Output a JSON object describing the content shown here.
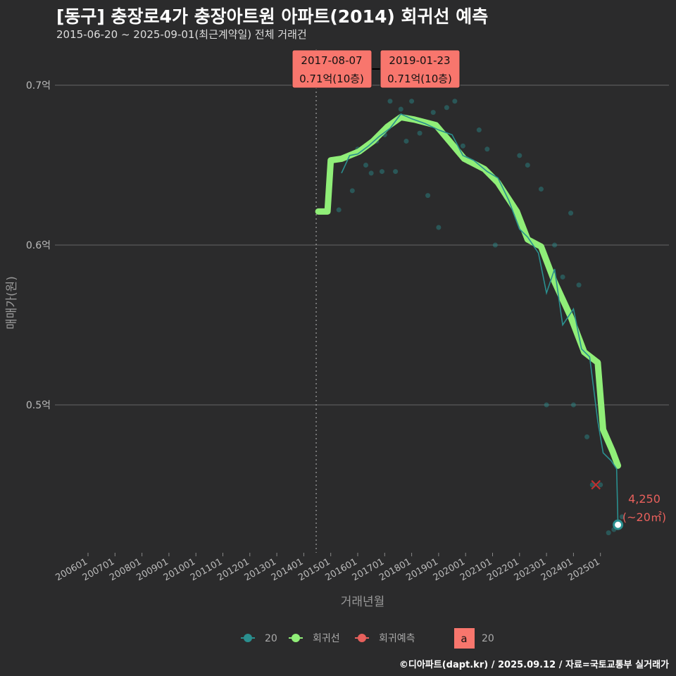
{
  "title": "[동구] 충장로4가 충장아트원 아파트(2014) 회귀선 예측",
  "subtitle": "2015-06-20 ~ 2025-09-01(최근계약일) 전체 거래건",
  "caption": "©디아파트(dapt.kr) / 2025.09.12 / 자료=국토교통부 실거래가",
  "chart_data": {
    "type": "line",
    "xlabel": "거래년월",
    "ylabel": "매매가(원)",
    "xlim": [
      2005.0,
      2026.4
    ],
    "ylim": [
      4050,
      7150
    ],
    "x_ticks": [
      {
        "v": 2006,
        "label": "200601"
      },
      {
        "v": 2007,
        "label": "200701"
      },
      {
        "v": 2008,
        "label": "200801"
      },
      {
        "v": 2009,
        "label": "200901"
      },
      {
        "v": 2010,
        "label": "201001"
      },
      {
        "v": 2011,
        "label": "201101"
      },
      {
        "v": 2012,
        "label": "201201"
      },
      {
        "v": 2013,
        "label": "201301"
      },
      {
        "v": 2014,
        "label": "201401"
      },
      {
        "v": 2015,
        "label": "201501"
      },
      {
        "v": 2016,
        "label": "201601"
      },
      {
        "v": 2017,
        "label": "201701"
      },
      {
        "v": 2018,
        "label": "201801"
      },
      {
        "v": 2019,
        "label": "201901"
      },
      {
        "v": 2020,
        "label": "202001"
      },
      {
        "v": 2021,
        "label": "202101"
      },
      {
        "v": 2022,
        "label": "202201"
      },
      {
        "v": 2023,
        "label": "202301"
      },
      {
        "v": 2024,
        "label": "202401"
      },
      {
        "v": 2025,
        "label": "202501"
      }
    ],
    "y_ticks": [
      {
        "v": 7000,
        "label": "0.7억"
      },
      {
        "v": 6000,
        "label": "0.6억"
      },
      {
        "v": 5000,
        "label": "0.5억"
      }
    ],
    "vline_x": 2014.46,
    "regression": {
      "name": "회귀선",
      "color": "#90ee78",
      "x": [
        2014.54,
        2014.88,
        2015.0,
        2015.4,
        2016.05,
        2016.57,
        2017.1,
        2017.6,
        2018.1,
        2018.9,
        2019.4,
        2019.95,
        2020.7,
        2021.2,
        2021.9,
        2022.3,
        2022.8,
        2023.3,
        2023.9,
        2024.4,
        2024.9,
        2025.1,
        2025.45,
        2025.65
      ],
      "y": [
        6210,
        6210,
        6530,
        6540,
        6585,
        6650,
        6740,
        6800,
        6785,
        6750,
        6650,
        6540,
        6475,
        6390,
        6210,
        6035,
        5990,
        5770,
        5550,
        5330,
        5265,
        4845,
        4710,
        4620
      ]
    },
    "actual": {
      "name": "20",
      "color": "#2a8f8f",
      "x": [
        2015.4,
        2015.7,
        2016.0,
        2016.4,
        2016.8,
        2017.2,
        2017.6,
        2018.0,
        2018.5,
        2019.0,
        2019.5,
        2019.9,
        2020.3,
        2020.8,
        2021.2,
        2021.6,
        2022.0,
        2022.3,
        2022.7,
        2023.0,
        2023.3,
        2023.6,
        2024.0,
        2024.3,
        2024.6,
        2024.9,
        2025.1,
        2025.4,
        2025.6,
        2025.65
      ],
      "y": [
        6450,
        6560,
        6570,
        6620,
        6680,
        6730,
        6820,
        6790,
        6760,
        6720,
        6690,
        6560,
        6530,
        6460,
        6420,
        6280,
        6100,
        6050,
        5950,
        5700,
        5850,
        5500,
        5600,
        5350,
        5300,
        4900,
        4700,
        4650,
        4600,
        4250
      ]
    },
    "scatter": {
      "x": [
        2015.3,
        2015.8,
        2016.0,
        2016.3,
        2016.5,
        2016.7,
        2016.9,
        2017.0,
        2017.2,
        2017.4,
        2017.6,
        2017.8,
        2018.0,
        2018.3,
        2018.6,
        2018.8,
        2019.0,
        2019.3,
        2019.6,
        2019.9,
        2020.1,
        2020.5,
        2020.8,
        2021.1,
        2021.5,
        2022.0,
        2022.3,
        2022.8,
        2023.0,
        2023.3,
        2023.6,
        2023.9,
        2024.0,
        2024.2,
        2024.5,
        2024.7,
        2025.0,
        2025.3,
        2025.5,
        2025.8
      ],
      "y": [
        6220,
        6340,
        6600,
        6500,
        6450,
        6650,
        6460,
        6690,
        6900,
        6460,
        6850,
        6650,
        6900,
        6700,
        6310,
        6830,
        6110,
        6860,
        6900,
        6620,
        6520,
        6720,
        6600,
        6000,
        6300,
        6560,
        6500,
        6350,
        5000,
        6000,
        5800,
        6200,
        5000,
        5750,
        4800,
        4500,
        4500,
        4200,
        4220,
        4300
      ]
    },
    "prediction": {
      "name": "회귀예측",
      "color": "#e8605c",
      "x": 2024.83,
      "y": 4500
    },
    "point_label": {
      "value": "4,250",
      "area": "(~20㎡)",
      "x": 2025.65,
      "y": 4250
    },
    "annotations": [
      {
        "date": "2017-08-07",
        "price": "0.71억(10층)",
        "x": 2017.6,
        "y": 6880
      },
      {
        "date": "2019-01-23",
        "price": "0.71억(10층)",
        "x": 2019.06,
        "y": 6880
      }
    ],
    "legend": {
      "position": "bottom",
      "items": [
        "20",
        "회귀선",
        "회귀예측"
      ],
      "label_box": "a",
      "label_box_text": "20"
    }
  }
}
